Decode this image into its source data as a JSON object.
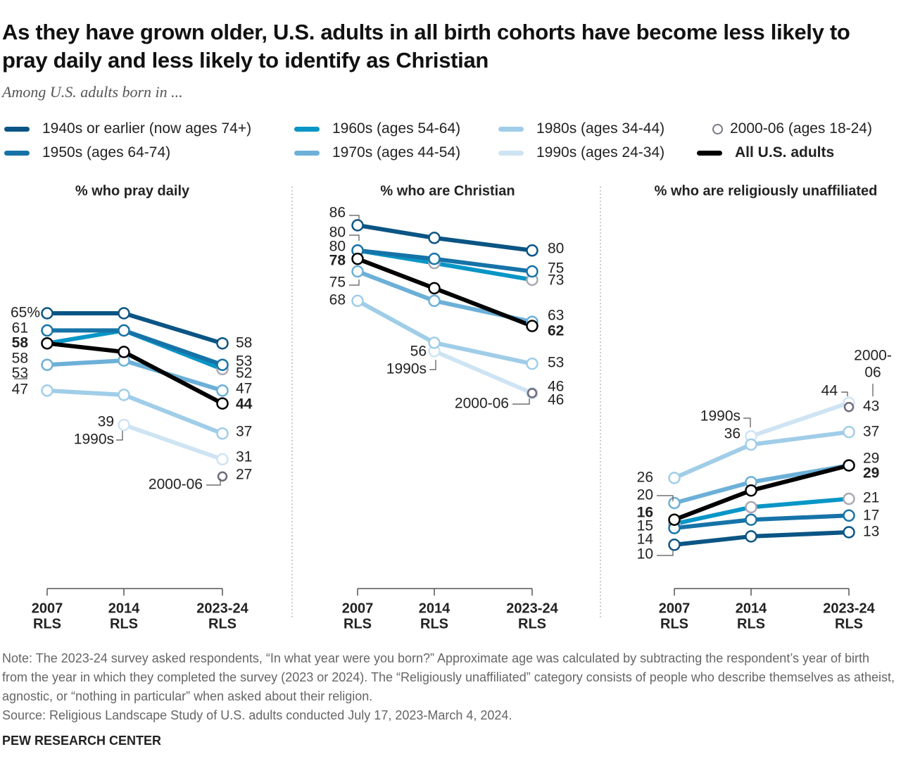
{
  "title": "As they have grown older, U.S. adults in all birth cohorts have become less likely to pray daily and less likely to identify as Christian",
  "subtitle": "Among U.S. adults born in ...",
  "legend": [
    {
      "label": "1940s or earlier (now ages 74+)",
      "color": "#0b5584"
    },
    {
      "label": "1950s (ages 64-74)",
      "color": "#1673a8"
    },
    {
      "label": "1960s (ages 54-64)",
      "color": "#0896c6"
    },
    {
      "label": "1970s (ages 44-54)",
      "color": "#6cb0d8"
    },
    {
      "label": "1980s (ages 34-44)",
      "color": "#a0cde8"
    },
    {
      "label": "1990s (ages 24-34)",
      "color": "#cfe4f3"
    },
    {
      "label": "2000-06 (ages 18-24)",
      "color": "#7a7888"
    },
    {
      "label": "All U.S. adults",
      "color": "#000000"
    }
  ],
  "chart_data": [
    {
      "type": "line",
      "title": "% who pray daily",
      "categories": [
        "2007 RLS",
        "2014 RLS",
        "2023-24 RLS"
      ],
      "series": [
        {
          "name": "1940s or earlier (now ages 74+)",
          "values": [
            65,
            65,
            58
          ]
        },
        {
          "name": "1950s (ages 64-74)",
          "values": [
            61,
            61,
            53
          ]
        },
        {
          "name": "1960s (ages 54-64)",
          "values": [
            58,
            61,
            52
          ]
        },
        {
          "name": "1970s (ages 44-54)",
          "values": [
            53,
            54,
            47
          ]
        },
        {
          "name": "1980s (ages 34-44)",
          "values": [
            47,
            46,
            37
          ]
        },
        {
          "name": "1990s (ages 24-34)",
          "values": [
            null,
            39,
            31
          ]
        },
        {
          "name": "2000-06 (ages 18-24)",
          "values": [
            null,
            null,
            27
          ]
        },
        {
          "name": "All U.S. adults",
          "values": [
            58,
            56,
            44
          ]
        }
      ],
      "annotations": [
        "1990s",
        "2000-06"
      ]
    },
    {
      "type": "line",
      "title": "% who are Christian",
      "categories": [
        "2007 RLS",
        "2014 RLS",
        "2023-24 RLS"
      ],
      "series": [
        {
          "name": "1940s or earlier (now ages 74+)",
          "values": [
            86,
            83,
            80
          ]
        },
        {
          "name": "1950s (ages 64-74)",
          "values": [
            80,
            78,
            75
          ]
        },
        {
          "name": "1960s (ages 54-64)",
          "values": [
            80,
            77,
            73
          ]
        },
        {
          "name": "1970s (ages 44-54)",
          "values": [
            75,
            68,
            63
          ]
        },
        {
          "name": "1980s (ages 34-44)",
          "values": [
            68,
            58,
            53
          ]
        },
        {
          "name": "1990s (ages 24-34)",
          "values": [
            null,
            56,
            46
          ]
        },
        {
          "name": "2000-06 (ages 18-24)",
          "values": [
            null,
            null,
            46
          ]
        },
        {
          "name": "All U.S. adults",
          "values": [
            78,
            71,
            62
          ]
        }
      ],
      "annotations": [
        "1990s",
        "2000-06"
      ]
    },
    {
      "type": "line",
      "title": "% who are religiously unaffiliated",
      "categories": [
        "2007 RLS",
        "2014 RLS",
        "2023-24 RLS"
      ],
      "series": [
        {
          "name": "1940s or earlier (now ages 74+)",
          "values": [
            10,
            12,
            13
          ]
        },
        {
          "name": "1950s (ages 64-74)",
          "values": [
            14,
            16,
            17
          ]
        },
        {
          "name": "1960s (ages 54-64)",
          "values": [
            15,
            19,
            21
          ]
        },
        {
          "name": "1970s (ages 44-54)",
          "values": [
            20,
            25,
            29
          ]
        },
        {
          "name": "1980s (ages 34-44)",
          "values": [
            26,
            34,
            37
          ]
        },
        {
          "name": "1990s (ages 24-34)",
          "values": [
            null,
            36,
            44
          ]
        },
        {
          "name": "2000-06 (ages 18-24)",
          "values": [
            null,
            null,
            43
          ]
        },
        {
          "name": "All U.S. adults",
          "values": [
            16,
            23,
            29
          ]
        }
      ],
      "annotations": [
        "1990s",
        "2000-",
        "06"
      ]
    }
  ],
  "note": "Note: The 2023-24 survey asked respondents, “In what year were you born?” Approximate age was calculated by subtracting the respondent’s year of birth from the year in which they completed the survey (2023 or 2024). The “Religiously unaffiliated” category consists of people who describe themselves as atheist, agnostic, or “nothing in particular” when asked about their religion.",
  "source": "Source: Religious Landscape Study of U.S. adults conducted July 17, 2023-March 4, 2024.",
  "brand": "PEW RESEARCH CENTER"
}
